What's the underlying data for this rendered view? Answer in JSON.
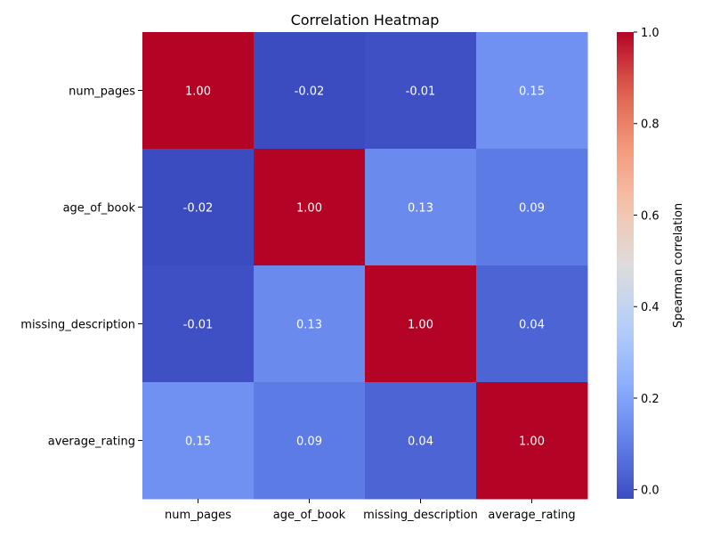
{
  "chart_data": {
    "type": "heatmap",
    "title": "Correlation Heatmap",
    "xlabel": "",
    "ylabel": "",
    "x_labels": [
      "num_pages",
      "age_of_book",
      "missing_description",
      "average_rating"
    ],
    "y_labels": [
      "num_pages",
      "age_of_book",
      "missing_description",
      "average_rating"
    ],
    "values": [
      [
        1.0,
        -0.02,
        -0.01,
        0.15
      ],
      [
        -0.02,
        1.0,
        0.13,
        0.09
      ],
      [
        -0.01,
        0.13,
        1.0,
        0.04
      ],
      [
        0.15,
        0.09,
        0.04,
        1.0
      ]
    ],
    "value_format": "2 decimals",
    "colormap": "coolwarm",
    "colorbar": {
      "label": "Spearman correlation",
      "min": -0.02,
      "max": 1.0,
      "ticks": [
        0.0,
        0.2,
        0.4,
        0.6,
        0.8,
        1.0
      ],
      "tick_labels": [
        "0.0",
        "0.2",
        "0.4",
        "0.6",
        "0.8",
        "1.0"
      ]
    },
    "grid": false
  }
}
